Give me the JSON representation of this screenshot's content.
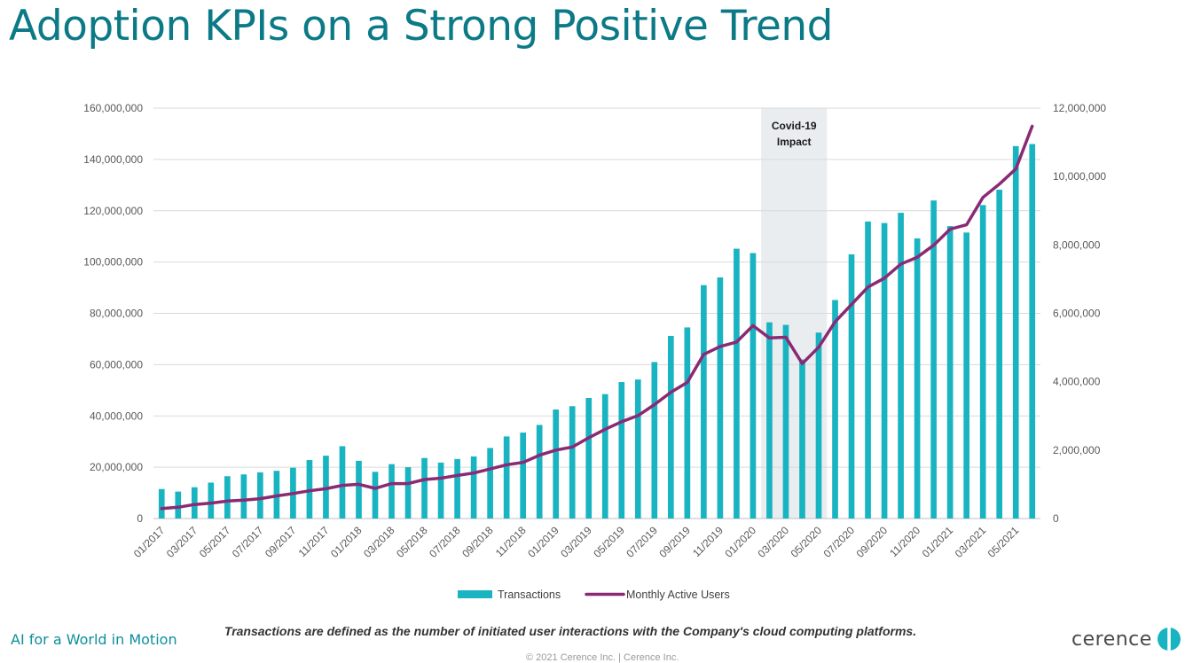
{
  "page": {
    "title": "Adoption KPIs on a Strong Positive Trend",
    "footnote": "Transactions are defined as the number of initiated user interactions with the Company's cloud computing platforms.",
    "tagline": "AI for a World in Motion",
    "copyright": "© 2021 Cerence Inc. | Cerence Inc.",
    "logo_text": "cerence",
    "logo_icon": "cerence-mark-icon"
  },
  "colors": {
    "bar": "#19b4c1",
    "line": "#8a2a75",
    "covid_band": "#dde3e6",
    "grid": "#d9d9d9",
    "title": "#0b7a86"
  },
  "chart_data": {
    "type": "bar",
    "title": "",
    "xlabel": "",
    "ylabel": "",
    "y2label": "",
    "grid": true,
    "legend_position": "bottom",
    "ylim": [
      0,
      160000000
    ],
    "y2lim": [
      0,
      12000000
    ],
    "y_ticks": [
      "0",
      "20,000,000",
      "40,000,000",
      "60,000,000",
      "80,000,000",
      "100,000,000",
      "120,000,000",
      "140,000,000",
      "160,000,000"
    ],
    "y2_ticks": [
      "0",
      "2,000,000",
      "4,000,000",
      "6,000,000",
      "8,000,000",
      "10,000,000",
      "12,000,000"
    ],
    "categories": [
      "01/2017",
      "02/2017",
      "03/2017",
      "04/2017",
      "05/2017",
      "06/2017",
      "07/2017",
      "08/2017",
      "09/2017",
      "10/2017",
      "11/2017",
      "12/2017",
      "01/2018",
      "02/2018",
      "03/2018",
      "04/2018",
      "05/2018",
      "06/2018",
      "07/2018",
      "08/2018",
      "09/2018",
      "10/2018",
      "11/2018",
      "12/2018",
      "01/2019",
      "02/2019",
      "03/2019",
      "04/2019",
      "05/2019",
      "06/2019",
      "07/2019",
      "08/2019",
      "09/2019",
      "10/2019",
      "11/2019",
      "12/2019",
      "01/2020",
      "02/2020",
      "03/2020",
      "04/2020",
      "05/2020",
      "06/2020",
      "07/2020",
      "08/2020",
      "09/2020",
      "10/2020",
      "11/2020",
      "12/2020",
      "01/2021",
      "02/2021",
      "03/2021",
      "04/2021",
      "05/2021",
      "06/2021"
    ],
    "x_tick_labels": [
      "01/2017",
      "03/2017",
      "05/2017",
      "07/2017",
      "09/2017",
      "11/2017",
      "01/2018",
      "03/2018",
      "05/2018",
      "07/2018",
      "09/2018",
      "11/2018",
      "01/2019",
      "03/2019",
      "05/2019",
      "07/2019",
      "09/2019",
      "11/2019",
      "01/2020",
      "03/2020",
      "05/2020",
      "07/2020",
      "09/2020",
      "11/2020",
      "01/2021",
      "03/2021",
      "05/2021"
    ],
    "series": [
      {
        "name": "Transactions",
        "type": "bar",
        "axis": "left",
        "values": [
          11500000,
          10500000,
          12200000,
          14000000,
          16500000,
          17200000,
          18000000,
          18600000,
          19800000,
          22800000,
          24500000,
          28200000,
          22500000,
          18200000,
          21200000,
          20000000,
          23600000,
          21800000,
          23200000,
          24200000,
          27500000,
          32000000,
          33500000,
          36500000,
          42500000,
          43800000,
          47000000,
          48500000,
          53200000,
          54200000,
          61000000,
          71200000,
          74500000,
          91000000,
          94000000,
          105200000,
          103500000,
          76500000,
          75500000,
          62000000,
          72500000,
          85200000,
          103000000,
          115800000,
          115200000,
          119200000,
          109200000,
          124000000,
          114000000,
          111500000,
          122200000,
          128200000,
          145200000,
          146000000
        ]
      },
      {
        "name": "Monthly Active Users",
        "type": "line",
        "axis": "right",
        "values": [
          290000,
          330000,
          410000,
          450000,
          510000,
          540000,
          580000,
          660000,
          730000,
          810000,
          870000,
          970000,
          1000000,
          880000,
          1020000,
          1020000,
          1140000,
          1180000,
          1260000,
          1330000,
          1450000,
          1570000,
          1640000,
          1850000,
          2000000,
          2090000,
          2360000,
          2610000,
          2830000,
          3010000,
          3330000,
          3690000,
          3980000,
          4800000,
          5030000,
          5160000,
          5640000,
          5280000,
          5300000,
          4530000,
          5010000,
          5750000,
          6260000,
          6770000,
          7030000,
          7440000,
          7640000,
          7990000,
          8460000,
          8590000,
          9390000,
          9780000,
          10220000,
          11470000
        ]
      }
    ],
    "annotations": [
      {
        "text": "Covid-19",
        "text_line2": "Impact",
        "shaded_from": "02/2020",
        "shaded_to": "06/2020"
      }
    ]
  }
}
